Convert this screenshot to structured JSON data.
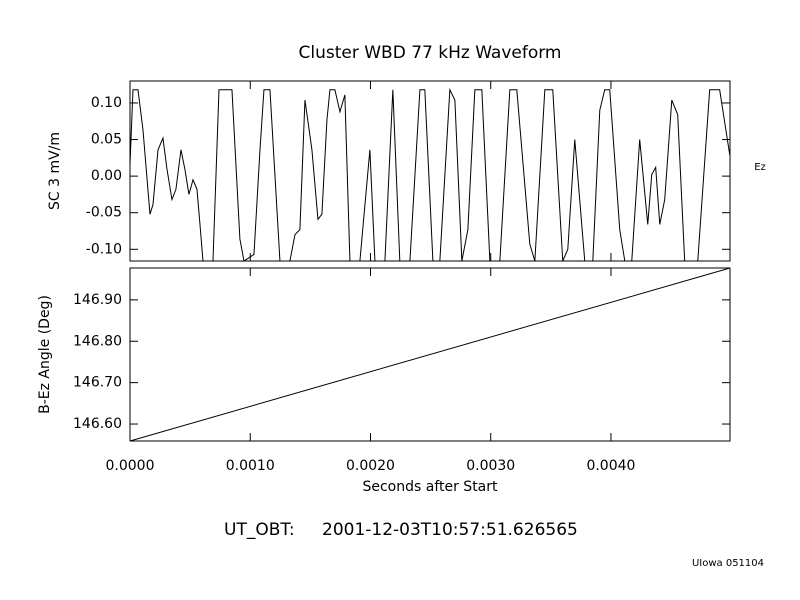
{
  "chart_data": [
    {
      "type": "line",
      "title": "Cluster WBD 77 kHz Waveform",
      "ylabel": "SC 3 mV/m",
      "side_label": "Ez",
      "color": "#000000",
      "x": [
        0,
        2.49e-05,
        6.65e-05,
        0.000108,
        0.000166,
        0.000191,
        0.000233,
        0.000274,
        0.000308,
        0.000349,
        0.000382,
        0.000424,
        0.000457,
        0.00049,
        0.000524,
        0.000557,
        0.000582,
        0.000607,
        0.00069,
        0.00074,
        0.000848,
        0.000914,
        0.000948,
        0.001031,
        0.001081,
        0.001114,
        0.001164,
        0.001247,
        0.00133,
        0.001372,
        0.001413,
        0.001455,
        0.001513,
        0.001563,
        0.001596,
        0.001638,
        0.001663,
        0.001704,
        0.001746,
        0.001787,
        0.001829,
        0.001912,
        0.001995,
        0.002037,
        0.00212,
        0.002186,
        0.002244,
        0.002328,
        0.002411,
        0.002452,
        0.002519,
        0.002577,
        0.00266,
        0.002702,
        0.00276,
        0.00281,
        0.002868,
        0.002926,
        0.002993,
        0.003076,
        0.003159,
        0.003217,
        0.003325,
        0.003367,
        0.00345,
        0.003516,
        0.003599,
        0.003641,
        0.003699,
        0.003782,
        0.003849,
        0.003907,
        0.003948,
        0.00399,
        0.004073,
        0.004115,
        0.004173,
        0.004239,
        0.004306,
        0.004339,
        0.004372,
        0.004406,
        0.004447,
        0.004506,
        0.004555,
        0.004613,
        0.004722,
        0.004821,
        0.004904,
        0.004988
      ],
      "values": [
        0.016,
        0.118,
        0.118,
        0.063,
        -0.052,
        -0.039,
        0.036,
        0.052,
        0.009,
        -0.032,
        -0.018,
        0.036,
        0.009,
        -0.025,
        -0.005,
        -0.018,
        -0.066,
        -0.116,
        -0.116,
        0.118,
        0.118,
        -0.086,
        -0.116,
        -0.107,
        0.036,
        0.118,
        0.118,
        -0.116,
        -0.116,
        -0.08,
        -0.073,
        0.104,
        0.036,
        -0.059,
        -0.052,
        0.077,
        0.118,
        0.118,
        0.088,
        0.111,
        -0.116,
        -0.116,
        0.036,
        -0.116,
        -0.116,
        0.118,
        -0.116,
        -0.116,
        0.118,
        0.118,
        -0.116,
        -0.116,
        0.118,
        0.104,
        -0.116,
        -0.073,
        0.118,
        0.118,
        -0.116,
        -0.116,
        0.118,
        0.118,
        -0.093,
        -0.116,
        0.118,
        0.118,
        -0.116,
        -0.1,
        0.05,
        -0.116,
        -0.116,
        0.09,
        0.118,
        0.118,
        -0.073,
        -0.116,
        -0.116,
        0.05,
        -0.066,
        0.002,
        0.012,
        -0.066,
        -0.032,
        0.104,
        0.084,
        -0.116,
        -0.116,
        0.118,
        0.118,
        0.029
      ],
      "xlim": [
        0,
        0.00499
      ],
      "ylim": [
        -0.116,
        0.13
      ],
      "yticks": [
        {
          "value": -0.1,
          "label": "-0.10"
        },
        -0.05,
        {
          "value": 0,
          "label": "0.00"
        },
        0.05,
        {
          "value": 0.1,
          "label": "0.10"
        }
      ]
    },
    {
      "type": "line",
      "ylabel": "B-Ez Angle (Deg)",
      "xlabel": "Seconds after Start",
      "color": "#000000",
      "x": [
        0,
        0.00499
      ],
      "values": [
        146.559,
        146.977
      ],
      "xlim": [
        0,
        0.00499
      ],
      "ylim": [
        146.559,
        146.977
      ],
      "xticks": [
        {
          "value": 0,
          "label": "0.0000"
        },
        {
          "value": 0.001,
          "label": "0.0010"
        },
        {
          "value": 0.002,
          "label": "0.0020"
        },
        {
          "value": 0.003,
          "label": "0.0030"
        },
        {
          "value": 0.004,
          "label": "0.0040"
        }
      ],
      "yticks": [
        {
          "value": 146.6,
          "label": "146.60"
        },
        {
          "value": 146.7,
          "label": "146.70"
        },
        {
          "value": 146.8,
          "label": "146.80"
        },
        {
          "value": 146.9,
          "label": "146.90"
        }
      ]
    }
  ],
  "footer": {
    "timestamp_label": "UT_OBT:",
    "timestamp": "2001-12-03T10:57:51.626565",
    "credit": "UIowa 051104"
  }
}
